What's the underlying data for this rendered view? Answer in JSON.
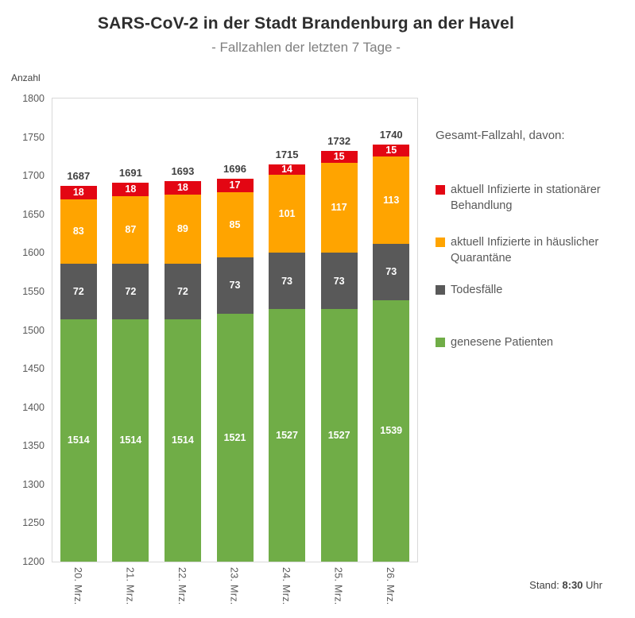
{
  "header": {
    "title": "SARS-CoV-2 in der Stadt Brandenburg an der Havel",
    "subtitle": "- Fallzahlen der letzten 7 Tage -"
  },
  "axis": {
    "y_label": "Anzahl",
    "y_min": 1200,
    "y_max": 1800,
    "y_step": 50
  },
  "chart_data": {
    "type": "bar",
    "stacked": true,
    "title": "SARS-CoV-2 in der Stadt Brandenburg an der Havel",
    "subtitle": "- Fallzahlen der letzten 7 Tage -",
    "ylabel": "Anzahl",
    "ylim": [
      1200,
      1800
    ],
    "grid": false,
    "legend_position": "right",
    "categories": [
      "20. Mrz.",
      "21. Mrz.",
      "22. Mrz.",
      "23. Mrz.",
      "24. Mrz.",
      "25. Mrz.",
      "26. Mrz."
    ],
    "series": [
      {
        "key": "genesene-patienten",
        "name": "genesene Patienten",
        "color": "#70AD47",
        "values": [
          1514,
          1514,
          1514,
          1521,
          1527,
          1527,
          1539
        ]
      },
      {
        "key": "todesfaelle",
        "name": "Todesfälle",
        "color": "#595959",
        "values": [
          72,
          72,
          72,
          73,
          73,
          73,
          73
        ]
      },
      {
        "key": "haeusliche-quarantaene",
        "name": "aktuell Infizierte in häuslicher Quarantäne",
        "color": "#FFA400",
        "values": [
          83,
          87,
          89,
          85,
          101,
          117,
          113
        ]
      },
      {
        "key": "stationaere-behandlung",
        "name": "aktuell Infizierte in stationärer Behandlung",
        "color": "#E30613",
        "values": [
          18,
          18,
          18,
          17,
          14,
          15,
          15
        ]
      }
    ],
    "totals": [
      1687,
      1691,
      1693,
      1696,
      1715,
      1732,
      1740
    ]
  },
  "legend": {
    "title": "Gesamt-Fallzahl, davon:",
    "items": [
      {
        "label": "aktuell Infizierte in stationärer Behandlung",
        "color": "#E30613"
      },
      {
        "label": "aktuell Infizierte in häuslicher Quarantäne",
        "color": "#FFA400"
      },
      {
        "label": "Todesfälle",
        "color": "#595959"
      },
      {
        "label": "genesene Patienten",
        "color": "#70AD47"
      }
    ]
  },
  "footer": {
    "stand_label": "Stand:",
    "stand_time": "8:30",
    "stand_suffix": "Uhr"
  }
}
